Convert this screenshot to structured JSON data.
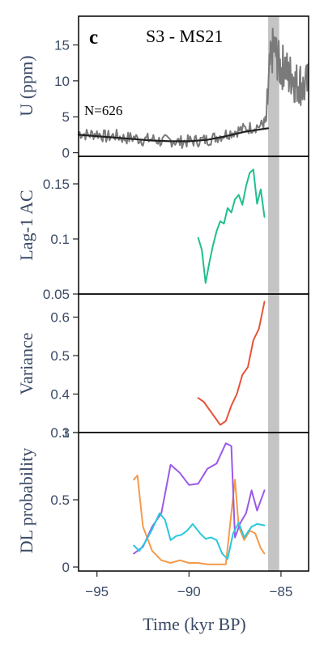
{
  "figure": {
    "panel_letter": "c",
    "title": "S3 - MS21",
    "n_label": "N=626"
  },
  "chart_data": [
    {
      "type": "line",
      "panel": "U",
      "ylabel": "U (ppm)",
      "xlabel": "",
      "xlim": [
        -96,
        -83.5
      ],
      "ylim": [
        -0.5,
        19
      ],
      "yticks": [
        0,
        5,
        10,
        15
      ],
      "shaded_band": [
        -85.7,
        -85.1
      ],
      "series": [
        {
          "style": "noisy-grey",
          "x": [
            -96.0,
            -95.5,
            -95.0,
            -94.5,
            -94.0,
            -93.5,
            -93.0,
            -92.5,
            -92.0,
            -91.5,
            -91.0,
            -90.5,
            -90.0,
            -89.5,
            -89.0,
            -88.5,
            -88.0,
            -87.5,
            -87.0,
            -86.5,
            -86.0,
            -85.8,
            -85.6,
            -85.4,
            -85.2,
            -85.0,
            -84.8,
            -84.6,
            -84.4,
            -84.2,
            -84.0,
            -83.8,
            -83.5
          ],
          "y": [
            2.8,
            2.5,
            2.7,
            2.2,
            2.4,
            2.0,
            2.1,
            1.8,
            1.9,
            1.6,
            1.7,
            1.5,
            1.6,
            1.7,
            1.8,
            2.2,
            2.6,
            3.0,
            3.3,
            3.6,
            3.8,
            4.5,
            12.0,
            15.0,
            13.0,
            11.5,
            12.5,
            10.5,
            11.0,
            9.5,
            10.0,
            9.0,
            9.5
          ]
        },
        {
          "style": "trend-black",
          "x": [
            -96.0,
            -95.0,
            -94.0,
            -93.0,
            -92.0,
            -91.0,
            -90.0,
            -89.0,
            -88.0,
            -87.0,
            -86.0,
            -85.7
          ],
          "y": [
            2.5,
            2.3,
            2.1,
            1.9,
            1.7,
            1.6,
            1.6,
            1.8,
            2.3,
            2.9,
            3.3,
            3.4
          ]
        }
      ]
    },
    {
      "type": "line",
      "panel": "AC",
      "ylabel": "Lag-1 AC",
      "xlabel": "",
      "xlim": [
        -96,
        -83.5
      ],
      "ylim": [
        0.05,
        0.175
      ],
      "yticks": [
        0.05,
        0.1,
        0.15
      ],
      "ytick_labels": [
        "0.05",
        "0.1",
        "0.15"
      ],
      "color": "#1fbf8f",
      "x": [
        -89.5,
        -89.3,
        -89.1,
        -88.9,
        -88.7,
        -88.5,
        -88.3,
        -88.1,
        -87.9,
        -87.7,
        -87.5,
        -87.3,
        -87.1,
        -86.9,
        -86.7,
        -86.5,
        -86.3,
        -86.1,
        -85.9
      ],
      "y": [
        0.101,
        0.09,
        0.06,
        0.078,
        0.094,
        0.107,
        0.116,
        0.114,
        0.128,
        0.124,
        0.136,
        0.14,
        0.131,
        0.148,
        0.16,
        0.163,
        0.132,
        0.145,
        0.12
      ]
    },
    {
      "type": "line",
      "panel": "Variance",
      "ylabel": "Variance",
      "xlabel": "",
      "xlim": [
        -96,
        -83.5
      ],
      "ylim": [
        0.3,
        0.66
      ],
      "yticks": [
        0.3,
        0.4,
        0.5,
        0.6
      ],
      "color": "#e8533a",
      "x": [
        -89.5,
        -89.2,
        -88.9,
        -88.6,
        -88.3,
        -88.0,
        -87.7,
        -87.4,
        -87.1,
        -86.8,
        -86.5,
        -86.2,
        -85.9
      ],
      "y": [
        0.39,
        0.38,
        0.36,
        0.34,
        0.32,
        0.33,
        0.37,
        0.4,
        0.45,
        0.47,
        0.54,
        0.57,
        0.64
      ]
    },
    {
      "type": "line",
      "panel": "DL",
      "ylabel": "DL probability",
      "xlabel": "Time (kyr BP)",
      "xlim": [
        -96,
        -83.5
      ],
      "ylim": [
        -0.03,
        1.0
      ],
      "yticks": [
        0,
        0.5,
        1
      ],
      "xticks": [
        -95,
        -90,
        -85
      ],
      "series": [
        {
          "color": "#f59a4a",
          "x": [
            -93.0,
            -92.8,
            -92.5,
            -92.0,
            -91.5,
            -91.0,
            -90.5,
            -90.0,
            -89.5,
            -89.0,
            -88.5,
            -88.0,
            -87.7,
            -87.5,
            -87.3,
            -87.0,
            -86.7,
            -86.4,
            -86.1,
            -85.9
          ],
          "y": [
            0.65,
            0.68,
            0.3,
            0.12,
            0.05,
            0.03,
            0.05,
            0.03,
            0.03,
            0.02,
            0.02,
            0.02,
            0.4,
            0.65,
            0.3,
            0.2,
            0.27,
            0.25,
            0.14,
            0.1
          ]
        },
        {
          "color": "#9b59e8",
          "x": [
            -93.0,
            -92.5,
            -92.0,
            -91.5,
            -91.0,
            -90.5,
            -90.0,
            -89.5,
            -89.0,
            -88.5,
            -88.0,
            -87.7,
            -87.5,
            -87.2,
            -86.9,
            -86.6,
            -86.3,
            -85.9
          ],
          "y": [
            0.1,
            0.15,
            0.3,
            0.4,
            0.76,
            0.7,
            0.61,
            0.62,
            0.73,
            0.77,
            0.92,
            0.9,
            0.22,
            0.33,
            0.4,
            0.57,
            0.42,
            0.57
          ]
        },
        {
          "color": "#29c8dc",
          "x": [
            -93.0,
            -92.7,
            -92.4,
            -92.0,
            -91.6,
            -91.3,
            -91.0,
            -90.7,
            -90.4,
            -90.1,
            -89.8,
            -89.4,
            -89.1,
            -88.8,
            -88.5,
            -88.2,
            -87.9,
            -87.6,
            -87.3,
            -87.0,
            -86.6,
            -86.3,
            -85.9
          ],
          "y": [
            0.16,
            0.12,
            0.18,
            0.28,
            0.4,
            0.35,
            0.2,
            0.23,
            0.24,
            0.27,
            0.32,
            0.25,
            0.21,
            0.22,
            0.2,
            0.1,
            0.06,
            0.25,
            0.33,
            0.22,
            0.3,
            0.32,
            0.31
          ]
        }
      ]
    }
  ]
}
